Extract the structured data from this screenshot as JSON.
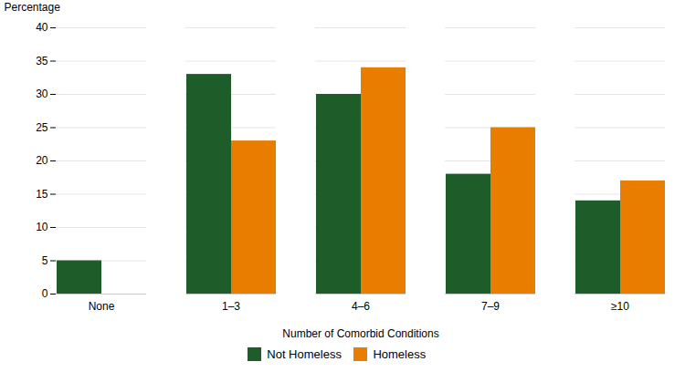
{
  "chart_data": {
    "type": "bar",
    "categories": [
      "None",
      "1–3",
      "4–6",
      "7–9",
      "≥10"
    ],
    "series": [
      {
        "name": "Not Homeless",
        "color": "#1e5c2a",
        "values": [
          5,
          33,
          30,
          18,
          14
        ]
      },
      {
        "name": "Homeless",
        "color": "#e87d00",
        "values": [
          0,
          23,
          34,
          25,
          17
        ]
      }
    ],
    "xlabel": "Number of Comorbid Conditions",
    "ylabel": "Percentage",
    "ylim": [
      0,
      40
    ],
    "yticks": [
      0,
      5,
      10,
      15,
      20,
      25,
      30,
      35,
      40
    ],
    "grid": true,
    "legend": "bottom"
  }
}
